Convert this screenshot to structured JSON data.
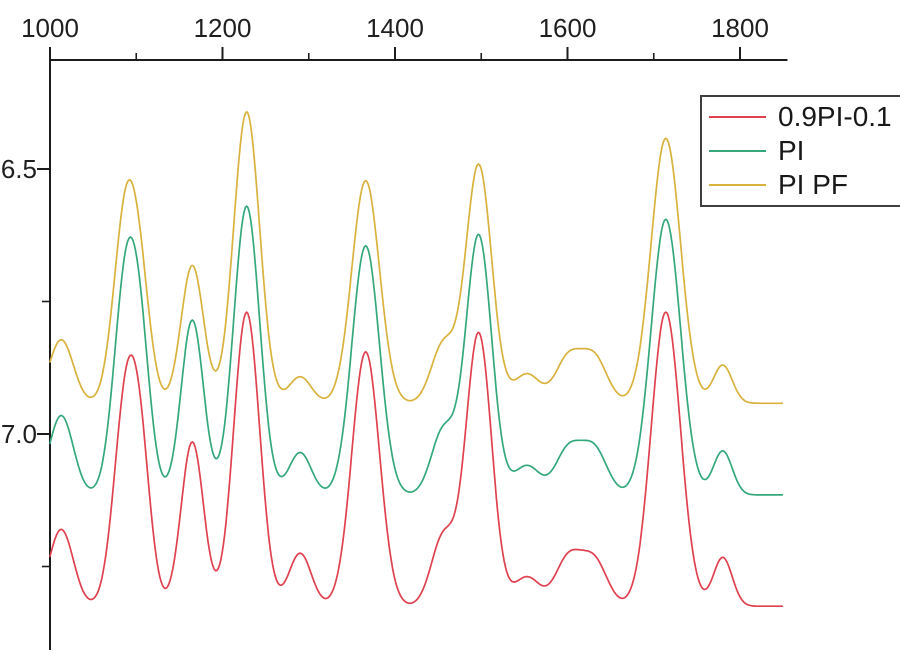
{
  "figure": {
    "background": "#ffffff",
    "axis_color": "#1c1c1c",
    "text_color": "#1f1f1f"
  },
  "legend": {
    "border_color": "#3f3f3f",
    "position": "top-right, clipped by right edge of image",
    "items": [
      {
        "label": "0.9PI-0.1",
        "color": "#E0414F"
      },
      {
        "label": "PI",
        "color": "#35A87B"
      },
      {
        "label": "PI PF",
        "color": "#D9B23D"
      }
    ]
  },
  "chart_data": {
    "type": "line",
    "title": "",
    "xlabel": "",
    "ylabel": "",
    "grid": false,
    "legend_position": "top-right",
    "x_axis": {
      "position": "top",
      "range": [
        1000,
        1855
      ],
      "ticks_major": [
        1000,
        1200,
        1400,
        1600,
        1800
      ],
      "ticks_minor": [
        1100,
        1300,
        1500,
        1700
      ]
    },
    "y_axis": {
      "position": "left",
      "direction": "increases-downward",
      "labels_clipped_at_left_edge": true,
      "ticks_major": [
        {
          "value": 6.5,
          "label": "6.5"
        },
        {
          "value": 7.0,
          "label": "7.0"
        }
      ],
      "ticks_minor": [
        6.75,
        7.25
      ]
    },
    "series_x_range": [
      1000,
      1850
    ],
    "model": "y(x) = offset - sum_i( heights[i] * exp( -(x - peak_centers[i])^2 / (2 * peak_widths[i]^2) ) )",
    "peak_centers": [
      1013,
      1088,
      1106,
      1165,
      1228,
      1290,
      1366,
      1456,
      1497,
      1553,
      1601,
      1631,
      1714,
      1780
    ],
    "peak_widths": [
      14,
      14,
      12,
      13,
      15,
      13,
      16,
      14,
      15,
      15,
      15,
      15,
      17,
      11
    ],
    "series": [
      {
        "name": "0.9PI-0.1",
        "color": "#E0414F",
        "offset": 7.325,
        "heights": [
          0.145,
          0.38,
          0.21,
          0.31,
          0.555,
          0.1,
          0.48,
          0.13,
          0.515,
          0.055,
          0.09,
          0.085,
          0.555,
          0.092
        ]
      },
      {
        "name": "PI",
        "color": "#35A87B",
        "offset": 7.115,
        "heights": [
          0.15,
          0.4,
          0.2,
          0.33,
          0.545,
          0.08,
          0.47,
          0.12,
          0.49,
          0.055,
          0.085,
          0.085,
          0.52,
          0.083
        ]
      },
      {
        "name": "PI PF",
        "color": "#D9B23D",
        "offset": 6.942,
        "heights": [
          0.12,
          0.36,
          0.15,
          0.26,
          0.55,
          0.05,
          0.42,
          0.11,
          0.45,
          0.055,
          0.085,
          0.085,
          0.5,
          0.072
        ]
      }
    ]
  }
}
